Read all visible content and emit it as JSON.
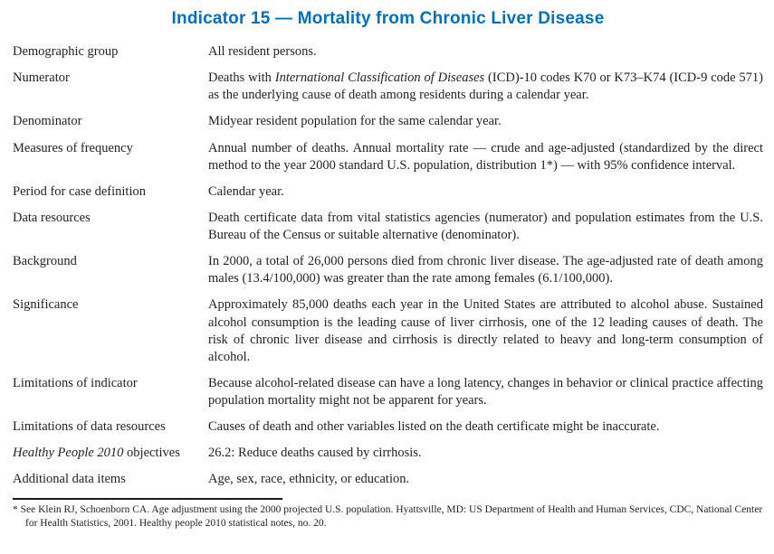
{
  "title": "Indicator 15 — Mortality from Chronic Liver Disease",
  "colors": {
    "title_accent": "#0071bc",
    "body_text": "#231f20"
  },
  "rows": [
    {
      "label": "Demographic group",
      "value": "All resident persons."
    },
    {
      "label": "Numerator",
      "value_pre": "Deaths with ",
      "value_italic": "International Classification of Diseases",
      "value_post": " (ICD)-10 codes K70 or K73–K74 (ICD-9 code 571) as the underlying cause of death among residents during a calendar year."
    },
    {
      "label": "Denominator",
      "value": "Midyear resident population for the same calendar year."
    },
    {
      "label": "Measures of frequency",
      "value": "Annual number of deaths. Annual mortality rate — crude and age-adjusted (standardized by the direct method to the year 2000 standard U.S. population, distribution 1*) — with 95% confidence interval."
    },
    {
      "label": "Period for case definition",
      "value": "Calendar year."
    },
    {
      "label": "Data resources",
      "value": "Death certificate data from vital statistics agencies (numerator) and population estimates from the U.S. Bureau of the Census or suitable alternative (denominator)."
    },
    {
      "label": "Background",
      "value": "In 2000, a total of 26,000 persons died from chronic liver disease. The age-adjusted rate of death among males (13.4/100,000) was greater than the rate among females (6.1/100,000)."
    },
    {
      "label": "Significance",
      "value": "Approximately 85,000 deaths each year in the United States are attributed to alcohol abuse. Sustained alcohol consumption is the leading cause of liver cirrhosis, one of the 12 leading causes of death. The risk of chronic liver disease and cirrhosis is directly related to heavy and long-term consumption of alcohol."
    },
    {
      "label": "Limitations of indicator",
      "value": "Because alcohol-related disease can have a long latency, changes in behavior or clinical practice affecting population mortality might not be apparent for years."
    },
    {
      "label": "Limitations of data resources",
      "value": "Causes of death and other variables listed on the death certificate might be inaccurate."
    },
    {
      "label_italic": "Healthy People 2010",
      "label_post": " objectives",
      "value": "26.2: Reduce deaths caused by cirrhosis."
    },
    {
      "label": "Additional data items",
      "value": "Age, sex, race, ethnicity, or education."
    }
  ],
  "footnote": {
    "text": "* See Klein RJ, Schoenborn CA. Age adjustment using the 2000 projected U.S. population. Hyattsville, MD: US Department of Health and Human Services, CDC, National Center for Health Statistics, 2001. Healthy people 2010 statistical notes, no. 20."
  }
}
